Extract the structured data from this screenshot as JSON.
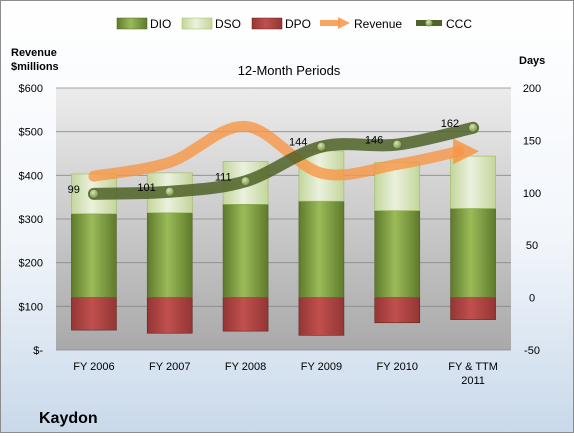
{
  "chart_data": {
    "type": "bar",
    "title": "12-Month Periods",
    "company": "Kaydon",
    "left_axis_title": "Revenue\n$millions",
    "right_axis_title": "Days",
    "categories": [
      "FY 2006",
      "FY 2007",
      "FY 2008",
      "FY 2009",
      "FY 2010",
      "FY & TTM\n2011"
    ],
    "left_axis": {
      "min": 0,
      "max": 600,
      "step": 100,
      "tick_labels": [
        "$-",
        "$100",
        "$200",
        "$300",
        "$400",
        "$500",
        "$600"
      ]
    },
    "right_axis": {
      "min": -50,
      "max": 200,
      "step": 50,
      "tick_labels": [
        "-50",
        "0",
        "50",
        "100",
        "150",
        "200"
      ]
    },
    "grid": true,
    "legend_placement": "top",
    "series": [
      {
        "name": "DIO",
        "kind": "stacked-bar",
        "axis": "right",
        "color": "#76923c",
        "values": [
          80,
          81,
          89,
          92,
          83,
          85
        ]
      },
      {
        "name": "DSO",
        "kind": "stacked-bar",
        "axis": "right",
        "color": "#d7e4bd",
        "values": [
          38,
          38,
          41,
          48,
          46,
          50
        ]
      },
      {
        "name": "DPO",
        "kind": "stacked-bar-negative",
        "axis": "right",
        "color": "#c0504d",
        "values": [
          -31,
          -34,
          -32,
          -36,
          -24,
          -21
        ]
      },
      {
        "name": "Revenue",
        "kind": "line",
        "axis": "left",
        "color": "#f79646",
        "values": [
          398,
          430,
          512,
          405,
          425,
          455
        ]
      },
      {
        "name": "CCC",
        "kind": "line",
        "axis": "right",
        "color": "#4f6228",
        "values": [
          99,
          101,
          111,
          144,
          146,
          162
        ],
        "data_labels": [
          "99",
          "101",
          "111",
          "144",
          "146",
          "162"
        ]
      }
    ]
  }
}
